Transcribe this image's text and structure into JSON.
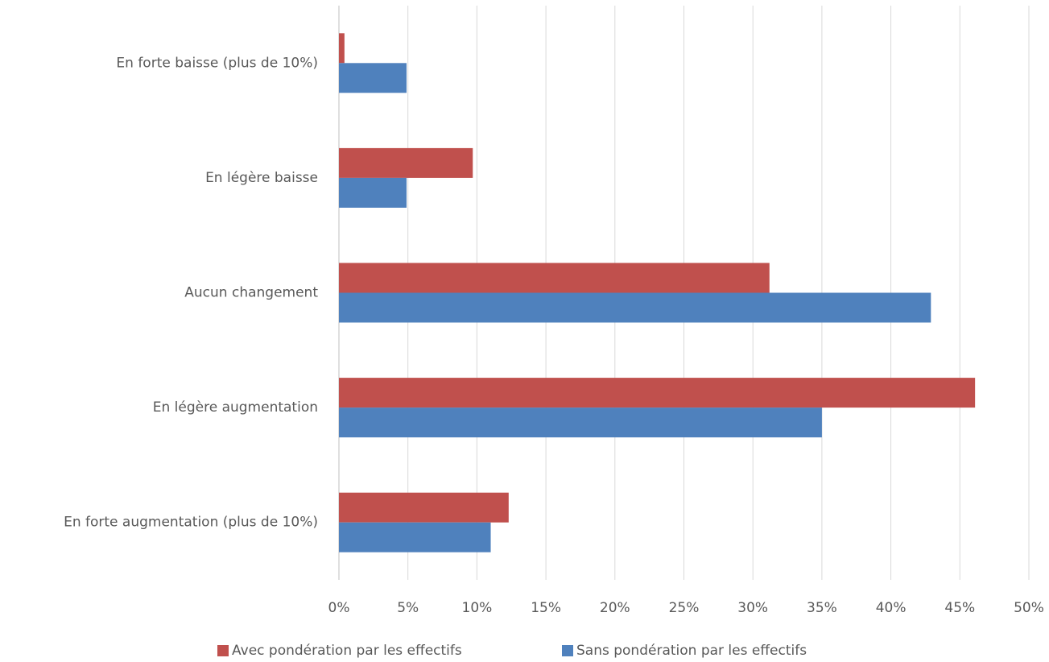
{
  "chart_data": {
    "type": "barh",
    "categories": [
      "En forte baisse (plus de 10%)",
      "En légère baisse",
      "Aucun changement",
      "En légère augmentation",
      "En forte augmentation (plus de 10%)"
    ],
    "series": [
      {
        "name": "Avec pondération par les effectifs",
        "color": "#c0504d",
        "values": [
          0.4,
          9.7,
          31.2,
          46.1,
          12.3
        ]
      },
      {
        "name": "Sans pondération par les effectifs",
        "color": "#4f81bd",
        "values": [
          4.9,
          4.9,
          42.9,
          35.0,
          11.0
        ]
      }
    ],
    "xlim": [
      0,
      50
    ],
    "xticks": [
      {
        "value": 0,
        "label": "0%"
      },
      {
        "value": 5,
        "label": "5%"
      },
      {
        "value": 10,
        "label": "10%"
      },
      {
        "value": 15,
        "label": "15%"
      },
      {
        "value": 20,
        "label": "20%"
      },
      {
        "value": 25,
        "label": "25%"
      },
      {
        "value": 30,
        "label": "30%"
      },
      {
        "value": 35,
        "label": "35%"
      },
      {
        "value": 40,
        "label": "40%"
      },
      {
        "value": 45,
        "label": "45%"
      },
      {
        "value": 50,
        "label": "50%"
      }
    ],
    "grid": true,
    "legend": "bottom"
  }
}
